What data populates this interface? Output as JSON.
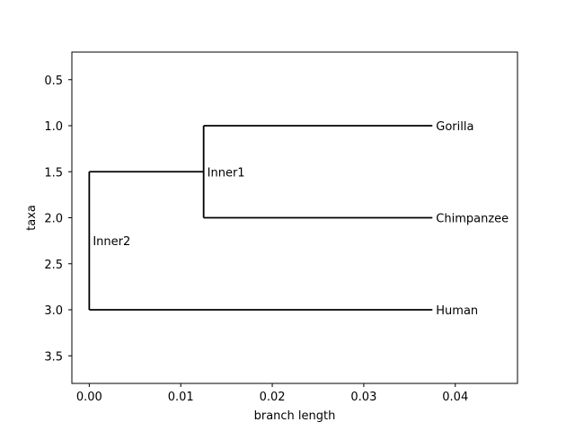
{
  "chart_data": {
    "type": "dendrogram",
    "xlabel": "branch length",
    "ylabel": "taxa",
    "xlim": [
      -0.0019,
      0.0468
    ],
    "ylim": [
      3.8,
      0.2
    ],
    "xticks": [
      0.0,
      0.01,
      0.02,
      0.03,
      0.04
    ],
    "xtick_labels": [
      "0.00",
      "0.01",
      "0.02",
      "0.03",
      "0.04"
    ],
    "yticks": [
      0.5,
      1.0,
      1.5,
      2.0,
      2.5,
      3.0,
      3.5
    ],
    "ytick_labels": [
      "0.5",
      "1.0",
      "1.5",
      "2.0",
      "2.5",
      "3.0",
      "3.5"
    ],
    "clades": [
      {
        "name": "Inner2",
        "x": 0.0,
        "y": 2.25,
        "children": [
          "Inner1",
          "Human"
        ]
      },
      {
        "name": "Inner1",
        "x": 0.0125,
        "y": 1.5,
        "children": [
          "Gorilla",
          "Chimpanzee"
        ]
      },
      {
        "name": "Gorilla",
        "x": 0.0375,
        "y": 1.0,
        "children": []
      },
      {
        "name": "Chimpanzee",
        "x": 0.0375,
        "y": 2.0,
        "children": []
      },
      {
        "name": "Human",
        "x": 0.0375,
        "y": 3.0,
        "children": []
      }
    ],
    "line_color": "#000000"
  }
}
